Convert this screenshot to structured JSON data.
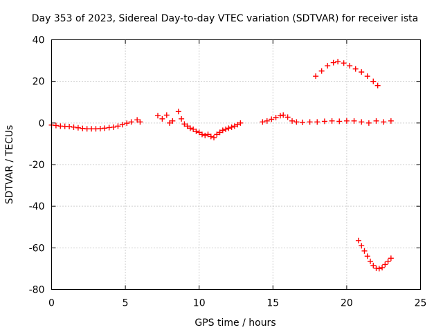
{
  "chart_data": {
    "type": "scatter",
    "title": "Day 353 of 2023, Sidereal Day-to-day VTEC variation (SDTVAR) for receiver ista",
    "xlabel": "GPS time / hours",
    "ylabel": "SDTVAR / TECUs",
    "xlim": [
      0,
      25
    ],
    "ylim": [
      -80,
      40
    ],
    "x_ticks": [
      0,
      5,
      10,
      15,
      20,
      25
    ],
    "y_ticks": [
      -80,
      -60,
      -40,
      -20,
      0,
      20,
      40
    ],
    "grid": true,
    "legend": "none",
    "marker": "plus",
    "series_color": "#ff0000",
    "series": [
      {
        "name": "SDTVAR",
        "points": [
          [
            0.0,
            -1.0
          ],
          [
            0.3,
            -1.2
          ],
          [
            0.6,
            -1.5
          ],
          [
            0.9,
            -1.6
          ],
          [
            1.2,
            -1.7
          ],
          [
            1.5,
            -2.0
          ],
          [
            1.8,
            -2.3
          ],
          [
            2.1,
            -2.6
          ],
          [
            2.4,
            -2.8
          ],
          [
            2.7,
            -2.8
          ],
          [
            3.0,
            -2.8
          ],
          [
            3.3,
            -2.7
          ],
          [
            3.6,
            -2.5
          ],
          [
            3.9,
            -2.2
          ],
          [
            4.2,
            -2.0
          ],
          [
            4.5,
            -1.5
          ],
          [
            4.8,
            -0.8
          ],
          [
            5.1,
            -0.1
          ],
          [
            5.4,
            0.5
          ],
          [
            5.8,
            1.5
          ],
          [
            6.0,
            0.5
          ],
          [
            7.2,
            3.5
          ],
          [
            7.5,
            2.0
          ],
          [
            7.8,
            3.8
          ],
          [
            8.0,
            0.0
          ],
          [
            8.2,
            1.0
          ],
          [
            8.6,
            5.5
          ],
          [
            8.8,
            2.0
          ],
          [
            9.0,
            -0.5
          ],
          [
            9.2,
            -1.5
          ],
          [
            9.4,
            -2.5
          ],
          [
            9.6,
            -3.0
          ],
          [
            9.8,
            -4.0
          ],
          [
            10.0,
            -4.5
          ],
          [
            10.2,
            -5.5
          ],
          [
            10.4,
            -6.0
          ],
          [
            10.6,
            -5.5
          ],
          [
            10.8,
            -6.5
          ],
          [
            11.0,
            -7.0
          ],
          [
            11.2,
            -5.5
          ],
          [
            11.4,
            -4.5
          ],
          [
            11.6,
            -3.5
          ],
          [
            11.8,
            -3.0
          ],
          [
            12.0,
            -2.5
          ],
          [
            12.2,
            -2.0
          ],
          [
            12.4,
            -1.5
          ],
          [
            12.6,
            -0.8
          ],
          [
            12.8,
            0.0
          ],
          [
            14.3,
            0.5
          ],
          [
            14.6,
            1.0
          ],
          [
            14.9,
            1.8
          ],
          [
            15.2,
            2.6
          ],
          [
            15.5,
            3.5
          ],
          [
            15.7,
            3.8
          ],
          [
            16.0,
            2.8
          ],
          [
            16.3,
            1.0
          ],
          [
            16.6,
            0.5
          ],
          [
            17.0,
            0.3
          ],
          [
            17.5,
            0.5
          ],
          [
            18.0,
            0.5
          ],
          [
            18.5,
            0.8
          ],
          [
            19.0,
            1.0
          ],
          [
            19.5,
            0.8
          ],
          [
            20.0,
            1.0
          ],
          [
            20.5,
            1.0
          ],
          [
            21.0,
            0.5
          ],
          [
            21.5,
            0.0
          ],
          [
            22.0,
            1.0
          ],
          [
            22.5,
            0.5
          ],
          [
            23.0,
            1.0
          ],
          [
            17.9,
            22.5
          ],
          [
            18.3,
            25.0
          ],
          [
            18.7,
            27.5
          ],
          [
            19.1,
            29.0
          ],
          [
            19.4,
            29.5
          ],
          [
            19.8,
            28.8
          ],
          [
            20.2,
            27.5
          ],
          [
            20.6,
            26.0
          ],
          [
            21.0,
            24.5
          ],
          [
            21.4,
            22.5
          ],
          [
            21.8,
            20.0
          ],
          [
            22.1,
            18.0
          ],
          [
            20.8,
            -56.5
          ],
          [
            21.0,
            -59.0
          ],
          [
            21.2,
            -61.5
          ],
          [
            21.4,
            -64.0
          ],
          [
            21.6,
            -66.5
          ],
          [
            21.8,
            -68.5
          ],
          [
            22.0,
            -69.8
          ],
          [
            22.2,
            -70.0
          ],
          [
            22.4,
            -69.5
          ],
          [
            22.6,
            -68.0
          ],
          [
            22.8,
            -66.5
          ],
          [
            23.0,
            -65.0
          ]
        ]
      }
    ]
  }
}
